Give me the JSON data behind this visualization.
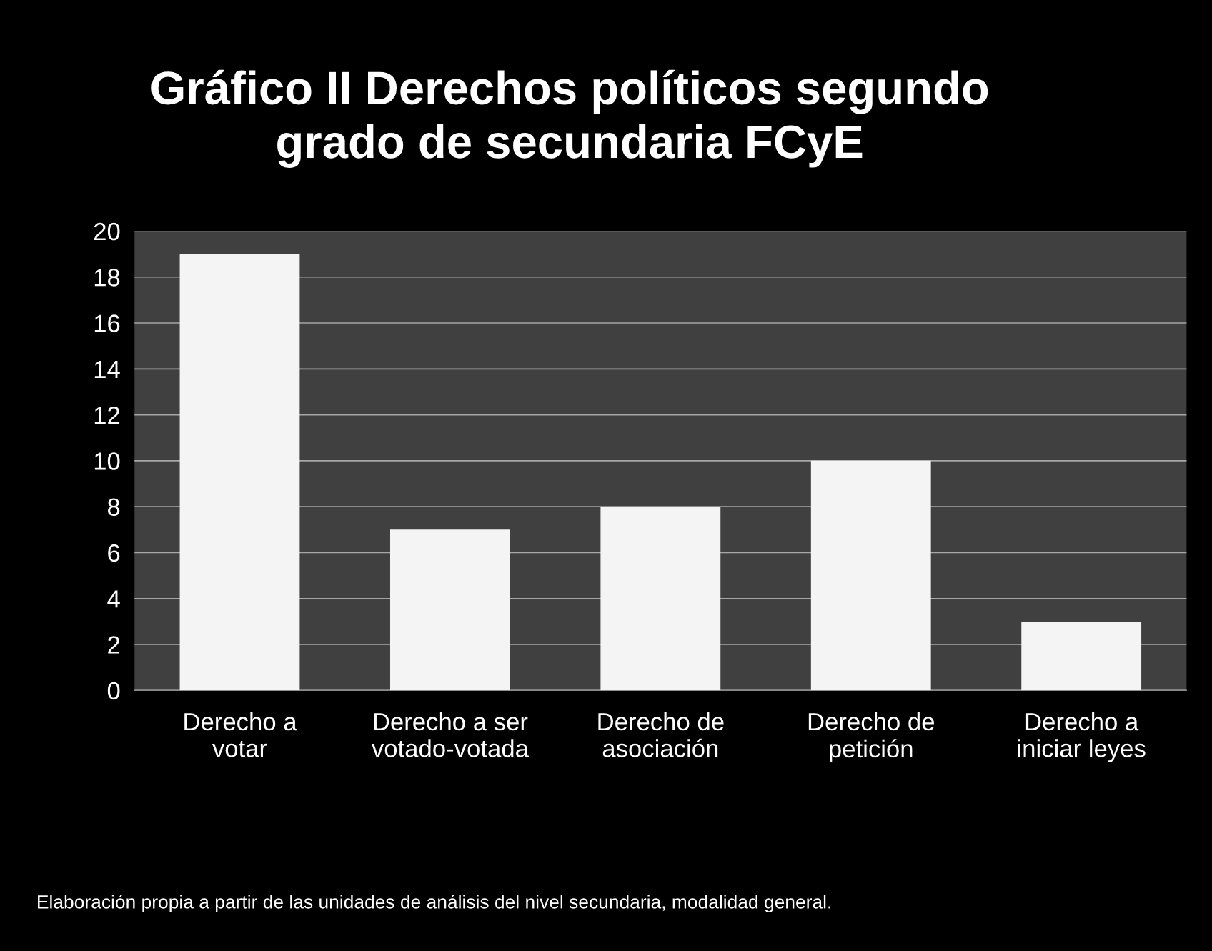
{
  "chart_data": {
    "type": "bar",
    "title": "Gráfico II Derechos políticos segundo\ngrado de secundaria FCyE",
    "categories": [
      "Derecho a\nvotar",
      "Derecho a ser\nvotado-votada",
      "Derecho de\nasociación",
      "Derecho de\npetición",
      "Derecho a\niniciar leyes"
    ],
    "values": [
      19,
      7,
      8,
      10,
      3
    ],
    "color": "#f4f4f4",
    "ylim": [
      0,
      20
    ],
    "yticks": [
      0,
      2,
      4,
      6,
      8,
      10,
      12,
      14,
      16,
      18,
      20
    ],
    "grid": "y",
    "annotations": [
      "Elaboración propia a partir de las unidades de análisis del nivel secundaria, modalidad general."
    ]
  }
}
